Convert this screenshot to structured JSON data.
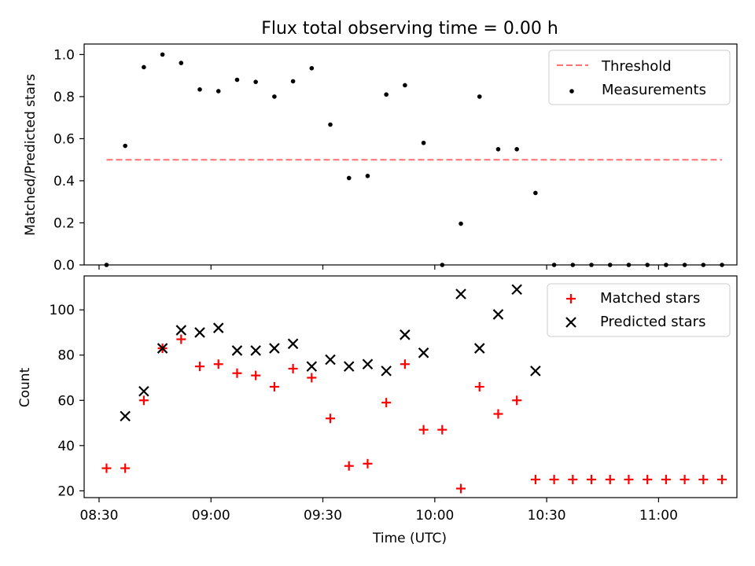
{
  "title": "Flux total observing time = 0.00 h",
  "colors": {
    "threshold": "#ff7070",
    "measurements": "#000000",
    "matched": "#ff0000",
    "predicted": "#000000"
  },
  "chart_data": [
    {
      "type": "scatter",
      "ylabel": "Matched/Predicted stars",
      "ylim": [
        0,
        1.05
      ],
      "yticks": [
        "0.0",
        "0.2",
        "0.4",
        "0.6",
        "0.8",
        "1.0"
      ],
      "legend_position": "top-right",
      "threshold": {
        "name": "Threshold",
        "y": 0.5,
        "x_range": [
          "08:32",
          "11:17"
        ]
      },
      "series": [
        {
          "name": "Measurements",
          "x": [
            "08:32",
            "08:37",
            "08:42",
            "08:47",
            "08:52",
            "08:57",
            "09:02",
            "09:07",
            "09:12",
            "09:17",
            "09:22",
            "09:27",
            "09:32",
            "09:37",
            "09:42",
            "09:47",
            "09:52",
            "09:57",
            "10:02",
            "10:07",
            "10:12",
            "10:17",
            "10:22",
            "10:27",
            "10:32",
            "10:37",
            "10:42",
            "10:47",
            "10:52",
            "10:57",
            "11:02",
            "11:07",
            "11:12",
            "11:17"
          ],
          "y": [
            0.0,
            0.566,
            0.94,
            1.0,
            0.96,
            0.834,
            0.826,
            0.88,
            0.87,
            0.8,
            0.873,
            0.935,
            0.667,
            0.413,
            0.423,
            0.81,
            0.854,
            0.58,
            0.0,
            0.196,
            0.8,
            0.55,
            0.55,
            0.342,
            0.0,
            0.0,
            0.0,
            0.0,
            0.0,
            0.0,
            0.0,
            0.0,
            0.0,
            0.0
          ]
        }
      ]
    },
    {
      "type": "scatter",
      "xlabel": "Time (UTC)",
      "ylabel": "Count",
      "ylim": [
        17,
        115
      ],
      "yticks": [
        "20",
        "40",
        "60",
        "80",
        "100"
      ],
      "xticks": [
        "08:30",
        "09:00",
        "09:30",
        "10:00",
        "10:30",
        "11:00"
      ],
      "legend_position": "top-right",
      "series": [
        {
          "name": "Matched stars",
          "x": [
            "08:32",
            "08:37",
            "08:42",
            "08:47",
            "08:52",
            "08:57",
            "09:02",
            "09:07",
            "09:12",
            "09:17",
            "09:22",
            "09:27",
            "09:32",
            "09:37",
            "09:42",
            "09:47",
            "09:52",
            "09:57",
            "10:02",
            "10:07",
            "10:12",
            "10:17",
            "10:22",
            "10:27",
            "10:32",
            "10:37",
            "10:42",
            "10:47",
            "10:52",
            "10:57",
            "11:02",
            "11:07",
            "11:12",
            "11:17"
          ],
          "y": [
            30,
            30,
            60,
            83,
            87,
            75,
            76,
            72,
            71,
            66,
            74,
            70,
            52,
            31,
            32,
            59,
            76,
            47,
            47,
            21,
            66,
            54,
            60,
            25,
            25,
            25,
            25,
            25,
            25,
            25,
            25,
            25,
            25,
            25
          ]
        },
        {
          "name": "Predicted stars",
          "x": [
            "08:37",
            "08:42",
            "08:47",
            "08:52",
            "08:57",
            "09:02",
            "09:07",
            "09:12",
            "09:17",
            "09:22",
            "09:27",
            "09:32",
            "09:37",
            "09:42",
            "09:47",
            "09:52",
            "09:57",
            "10:07",
            "10:12",
            "10:17",
            "10:22",
            "10:27"
          ],
          "y": [
            53,
            64,
            83,
            91,
            90,
            92,
            82,
            82,
            83,
            85,
            75,
            78,
            75,
            76,
            73,
            89,
            81,
            107,
            83,
            98,
            109,
            73
          ]
        }
      ]
    }
  ]
}
